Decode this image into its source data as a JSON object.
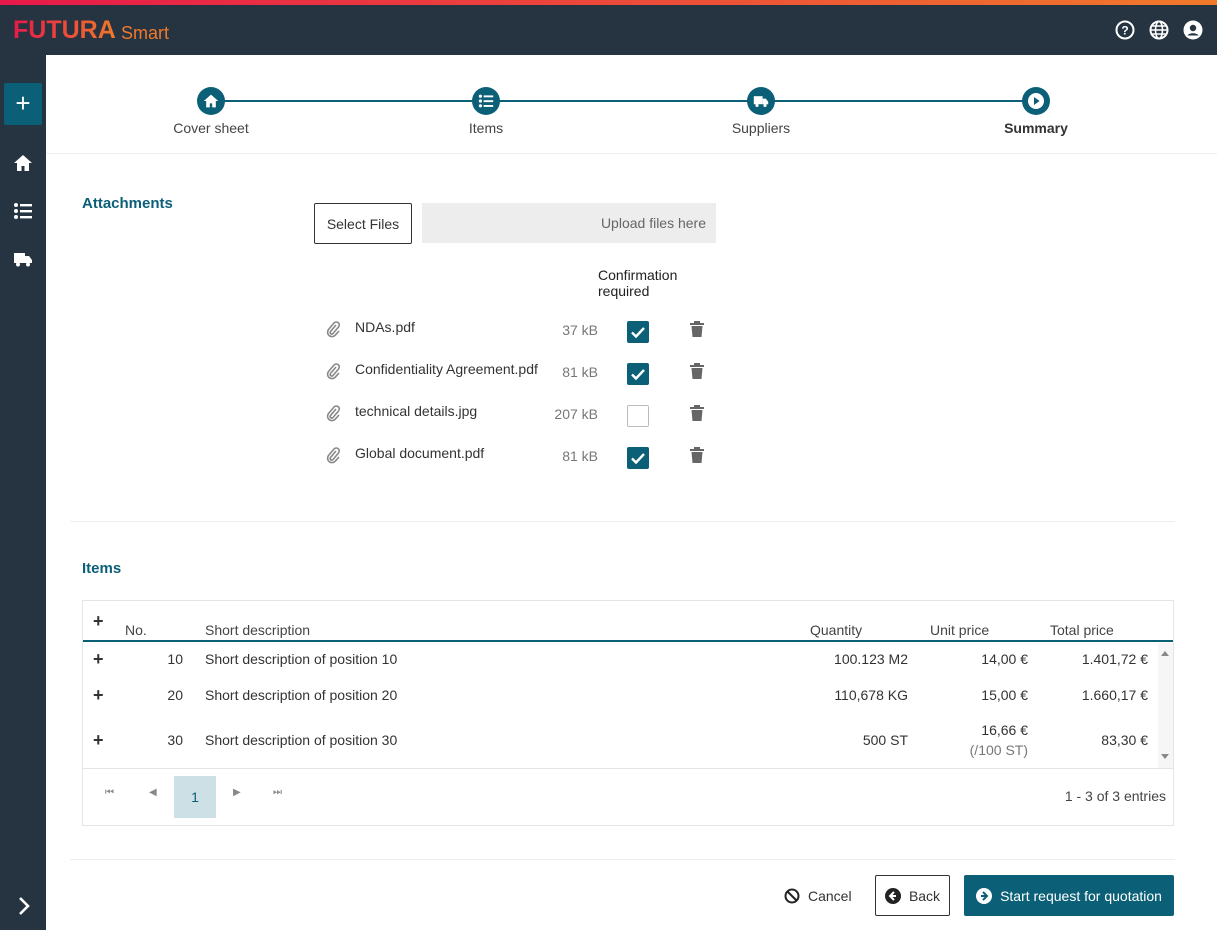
{
  "app": {
    "brand": "FUTURA",
    "product": "Smart",
    "gradient": [
      "#e8194a",
      "#f07a2a"
    ],
    "accent": "#0b6077"
  },
  "topbar_icons": [
    "help-icon",
    "globe-icon",
    "user-account-icon"
  ],
  "sidebar": {
    "items": [
      "add-icon",
      "home-icon",
      "list-icon",
      "truck-icon"
    ],
    "expand": "chevron-right-icon"
  },
  "stepper": [
    {
      "label": "Cover sheet",
      "icon": "home-icon"
    },
    {
      "label": "Items",
      "icon": "list-icon"
    },
    {
      "label": "Suppliers",
      "icon": "truck-icon"
    },
    {
      "label": "Summary",
      "icon": "play-icon",
      "active": true
    }
  ],
  "attachments": {
    "heading": "Attachments",
    "select_label": "Select Files",
    "upload_placeholder": "Upload files here",
    "confirm_header": "Confirmation required",
    "files": [
      {
        "name": "NDAs.pdf",
        "size": "37 kB",
        "confirm": true
      },
      {
        "name": "Confidentiality Agreement.pdf",
        "size": "81 kB",
        "confirm": true
      },
      {
        "name": "technical details.jpg",
        "size": "207 kB",
        "confirm": false
      },
      {
        "name": "Global document.pdf",
        "size": "81 kB",
        "confirm": true
      }
    ]
  },
  "items": {
    "heading": "Items",
    "columns": {
      "expand": "+",
      "no": "No.",
      "desc": "Short description",
      "qty": "Quantity",
      "unit": "Unit price",
      "total": "Total price"
    },
    "rows": [
      {
        "no": "10",
        "desc": "Short description of position 10",
        "qty": "100.123 M2",
        "unit": "14,00 €",
        "unit_sub": "",
        "total": "1.401,72 €"
      },
      {
        "no": "20",
        "desc": "Short description of position 20",
        "qty": "110,678 KG",
        "unit": "15,00 €",
        "unit_sub": "",
        "total": "1.660,17 €"
      },
      {
        "no": "30",
        "desc": "Short description of position 30",
        "qty": "500 ST",
        "unit": "16,66 €",
        "unit_sub": "(/100 ST)",
        "total": "83,30 €"
      }
    ],
    "pagination": {
      "page": "1",
      "summary": "1 - 3 of 3 entries"
    }
  },
  "actions": {
    "cancel": "Cancel",
    "back": "Back",
    "start": "Start request for quotation"
  }
}
